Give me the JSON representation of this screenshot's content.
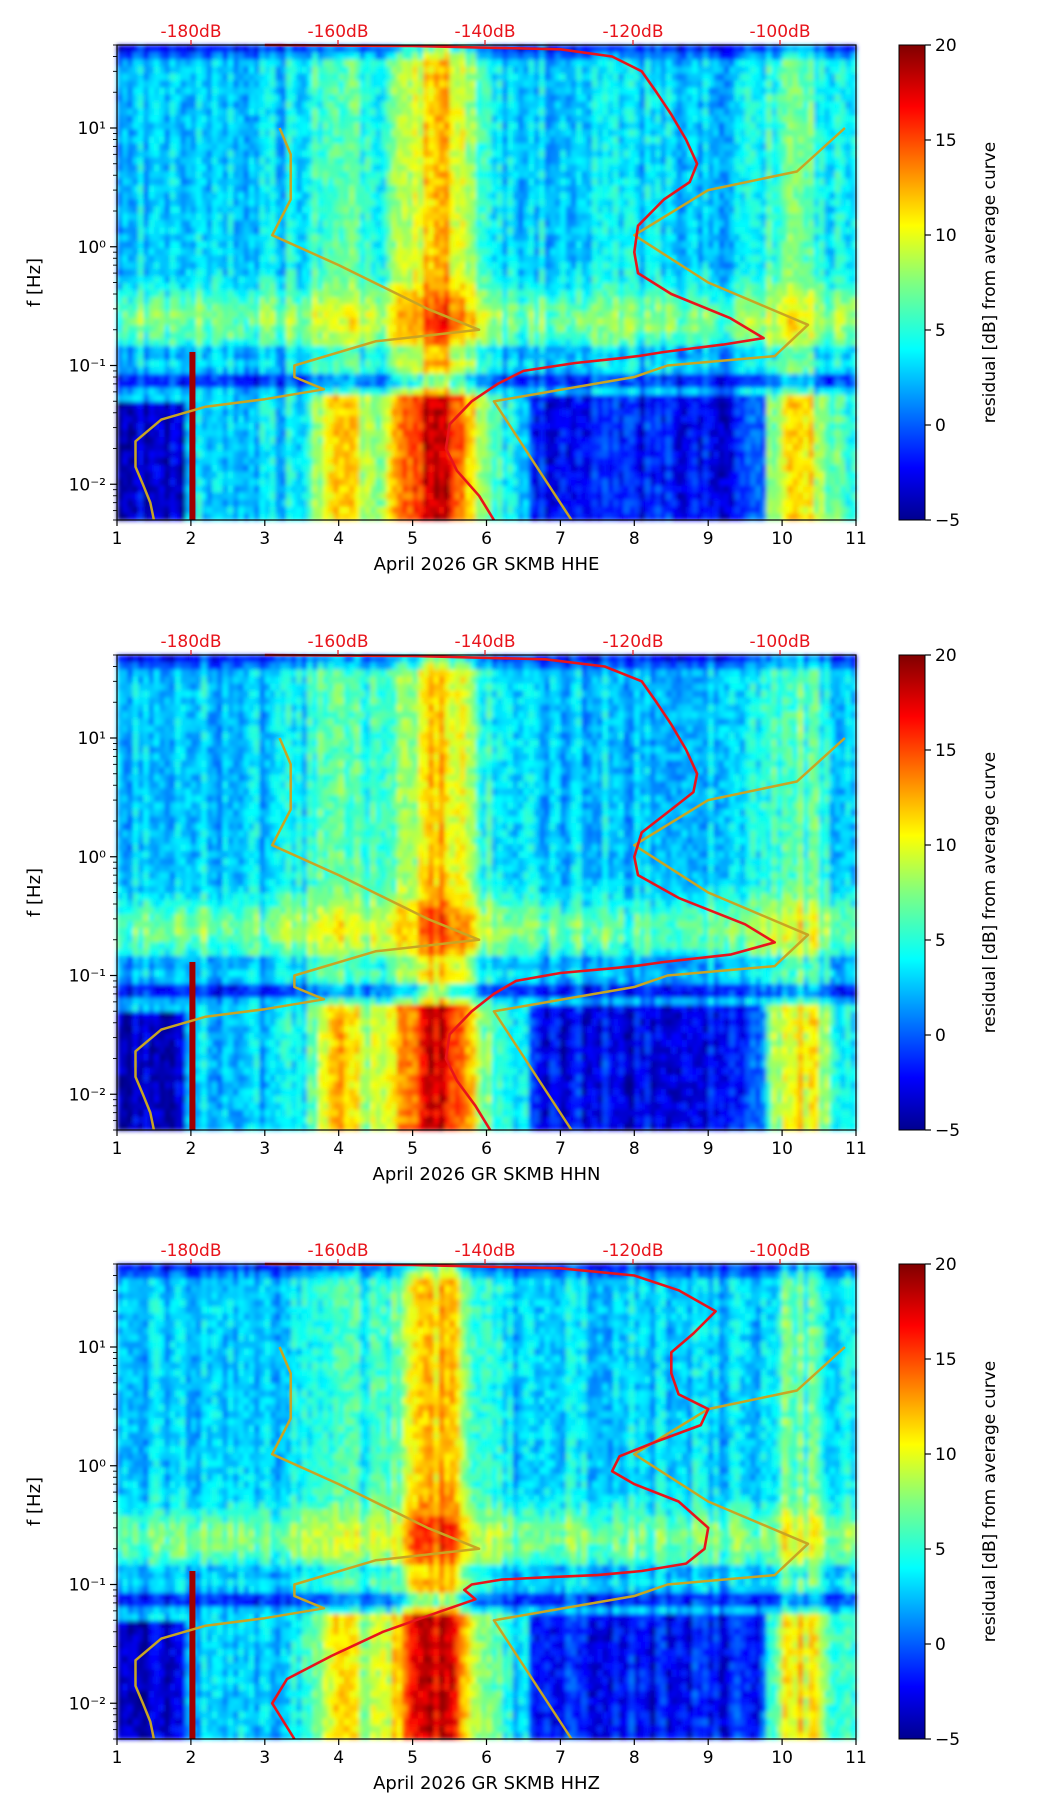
{
  "chart_data": [
    {
      "type": "heatmap",
      "xlabel": "April 2026 GR SKMB  HHE",
      "ylabel": "f [Hz]",
      "xlim": [
        1,
        11
      ],
      "xticks": [
        "1",
        "2",
        "3",
        "4",
        "5",
        "6",
        "7",
        "8",
        "9",
        "10",
        "11"
      ],
      "y_scale": "log",
      "ylim": [
        0.005,
        50
      ],
      "yticks": [
        "10⁻²",
        "10⁻¹",
        "10⁰",
        "10¹"
      ],
      "top_ticks": [
        "-180dB",
        "-160dB",
        "-140dB",
        "-120dB",
        "-100dB"
      ],
      "top_tick_color": "#e8141b",
      "colorbar": {
        "label": "residual [dB] from average curve",
        "ticks": [
          "−5",
          "0",
          "5",
          "10",
          "15",
          "20"
        ],
        "range": [
          -5,
          20
        ],
        "colormap": "jet"
      },
      "noise_model_color": "#c8a523",
      "average_curve_color": "#e8141b",
      "average_curve": {
        "x": [
          6.1,
          5.9,
          5.6,
          5.45,
          5.5,
          5.8,
          6.15,
          6.5,
          7.2,
          7.8,
          8.05,
          8.4,
          9.2,
          9.75,
          9.3,
          8.5,
          8.05,
          8.0,
          8.05,
          8.4,
          8.75,
          8.85,
          8.7,
          8.5,
          8.3,
          8.1,
          7.7,
          7.0,
          5.0,
          3.0
        ],
        "y": [
          0.005,
          0.008,
          0.013,
          0.02,
          0.032,
          0.05,
          0.07,
          0.09,
          0.105,
          0.115,
          0.12,
          0.13,
          0.15,
          0.17,
          0.25,
          0.4,
          0.6,
          0.9,
          1.5,
          2.5,
          3.5,
          5,
          8,
          13,
          20,
          30,
          40,
          46,
          49,
          50
        ]
      }
    },
    {
      "type": "heatmap",
      "xlabel": "April 2026 GR SKMB  HHN",
      "ylabel": "f [Hz]",
      "xlim": [
        1,
        11
      ],
      "xticks": [
        "1",
        "2",
        "3",
        "4",
        "5",
        "6",
        "7",
        "8",
        "9",
        "10",
        "11"
      ],
      "y_scale": "log",
      "ylim": [
        0.005,
        50
      ],
      "yticks": [
        "10⁻²",
        "10⁻¹",
        "10⁰",
        "10¹"
      ],
      "top_ticks": [
        "-180dB",
        "-160dB",
        "-140dB",
        "-120dB",
        "-100dB"
      ],
      "top_tick_color": "#e8141b",
      "colorbar": {
        "label": "residual [dB] from average curve",
        "ticks": [
          "−5",
          "0",
          "5",
          "10",
          "15",
          "20"
        ],
        "range": [
          -5,
          20
        ],
        "colormap": "jet"
      },
      "noise_model_color": "#c8a523",
      "average_curve_color": "#e8141b",
      "average_curve": {
        "x": [
          6.05,
          5.85,
          5.6,
          5.45,
          5.5,
          5.8,
          6.1,
          6.4,
          7.0,
          7.7,
          8.0,
          8.4,
          9.3,
          9.9,
          9.5,
          8.6,
          8.05,
          8.0,
          8.1,
          8.5,
          8.8,
          8.85,
          8.7,
          8.5,
          8.3,
          8.1,
          7.6,
          6.8,
          5.0,
          3.0
        ],
        "y": [
          0.005,
          0.008,
          0.013,
          0.02,
          0.032,
          0.05,
          0.07,
          0.09,
          0.105,
          0.115,
          0.12,
          0.13,
          0.15,
          0.19,
          0.27,
          0.45,
          0.7,
          1.0,
          1.6,
          2.5,
          3.5,
          5,
          8,
          13,
          20,
          30,
          40,
          46,
          49,
          50
        ]
      }
    },
    {
      "type": "heatmap",
      "xlabel": "April 2026 GR SKMB  HHZ",
      "ylabel": "f [Hz]",
      "xlim": [
        1,
        11
      ],
      "xticks": [
        "1",
        "2",
        "3",
        "4",
        "5",
        "6",
        "7",
        "8",
        "9",
        "10",
        "11"
      ],
      "y_scale": "log",
      "ylim": [
        0.005,
        50
      ],
      "yticks": [
        "10⁻²",
        "10⁻¹",
        "10⁰",
        "10¹"
      ],
      "top_ticks": [
        "-180dB",
        "-160dB",
        "-140dB",
        "-120dB",
        "-100dB"
      ],
      "top_tick_color": "#e8141b",
      "colorbar": {
        "label": "residual [dB] from average curve",
        "ticks": [
          "−5",
          "0",
          "5",
          "10",
          "15",
          "20"
        ],
        "range": [
          -5,
          20
        ],
        "colormap": "jet"
      },
      "noise_model_color": "#c8a523",
      "average_curve_color": "#e8141b",
      "average_curve": {
        "x": [
          3.4,
          3.1,
          3.3,
          3.9,
          4.6,
          5.4,
          5.85,
          5.7,
          5.8,
          6.2,
          6.8,
          7.5,
          8.1,
          8.7,
          8.95,
          9.0,
          8.6,
          8.0,
          7.7,
          7.8,
          8.3,
          8.9,
          9.0,
          8.6,
          8.5,
          8.5,
          8.8,
          9.1,
          8.6,
          8.0,
          7.0,
          5.0,
          3.0
        ],
        "y": [
          0.005,
          0.01,
          0.016,
          0.025,
          0.04,
          0.06,
          0.075,
          0.09,
          0.1,
          0.11,
          0.115,
          0.12,
          0.13,
          0.15,
          0.2,
          0.3,
          0.5,
          0.7,
          0.9,
          1.2,
          1.6,
          2.2,
          3.0,
          4.0,
          6.0,
          9.0,
          13,
          20,
          30,
          40,
          46,
          49,
          50
        ]
      }
    }
  ],
  "noise_model_low": {
    "x": [
      1.5,
      1.45,
      1.35,
      1.25,
      1.25,
      1.6,
      2.2,
      3.0,
      3.8,
      3.4,
      3.4,
      4.5,
      5.9,
      5.2,
      4.0,
      3.1,
      3.35,
      3.35,
      3.2
    ],
    "y": [
      0.005,
      0.007,
      0.01,
      0.014,
      0.023,
      0.035,
      0.045,
      0.052,
      0.063,
      0.08,
      0.1,
      0.16,
      0.2,
      0.3,
      0.7,
      1.25,
      2.5,
      6,
      10
    ]
  },
  "noise_model_high": {
    "x": [
      7.15,
      6.1,
      8.0,
      8.45,
      9.9,
      10.35,
      9.0,
      8.0,
      9.0,
      10.2,
      10.85
    ],
    "y": [
      0.005,
      0.05,
      0.08,
      0.1,
      0.12,
      0.22,
      0.5,
      1.25,
      3.0,
      4.3,
      10
    ]
  }
}
